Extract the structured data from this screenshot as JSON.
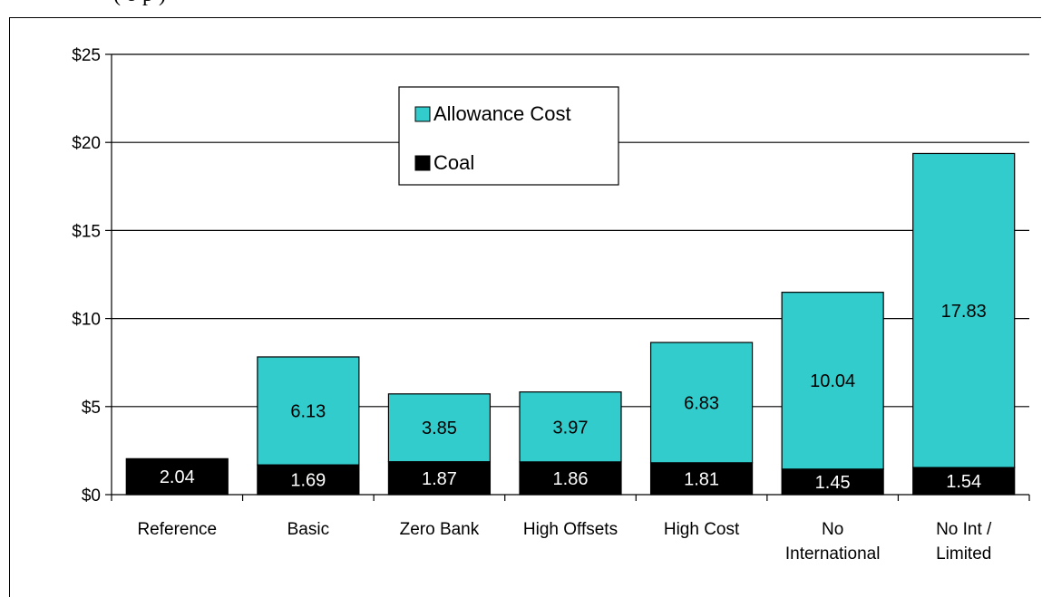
{
  "page": {
    "caption": "(         o        p                     )"
  },
  "chart_data": {
    "type": "bar",
    "stacked": true,
    "categories": [
      "Reference",
      "Basic",
      "Zero Bank",
      "High Offsets",
      "High Cost",
      "No International",
      "No Int / Limited"
    ],
    "category_lines": [
      [
        "Reference"
      ],
      [
        "Basic"
      ],
      [
        "Zero Bank"
      ],
      [
        "High Offsets"
      ],
      [
        "High Cost"
      ],
      [
        "No",
        "International"
      ],
      [
        "No Int /",
        "Limited"
      ]
    ],
    "series": [
      {
        "name": "Coal",
        "color": "#000000",
        "label_color": "#ffffff",
        "values": [
          2.04,
          1.69,
          1.87,
          1.86,
          1.81,
          1.45,
          1.54
        ]
      },
      {
        "name": "Allowance Cost",
        "color": "#33cccc",
        "label_color": "#000000",
        "values": [
          null,
          6.13,
          3.85,
          3.97,
          6.83,
          10.04,
          17.83
        ]
      }
    ],
    "data_labels": {
      "Coal": [
        "2.04",
        "1.69",
        "1.87",
        "1.86",
        "1.81",
        "1.45",
        "1.54"
      ],
      "Allowance Cost": [
        "",
        "6.13",
        "3.85",
        "3.97",
        "6.83",
        "10.04",
        "17.83"
      ]
    },
    "legend_order": [
      "Allowance Cost",
      "Coal"
    ],
    "legend_position": "top-center",
    "ylim": [
      0,
      25
    ],
    "yticks": [
      0,
      5,
      10,
      15,
      20,
      25
    ],
    "ytick_labels": [
      "$0",
      "$5",
      "$10",
      "$15",
      "$20",
      "$25"
    ],
    "grid": true,
    "title": "",
    "xlabel": "",
    "ylabel": ""
  }
}
